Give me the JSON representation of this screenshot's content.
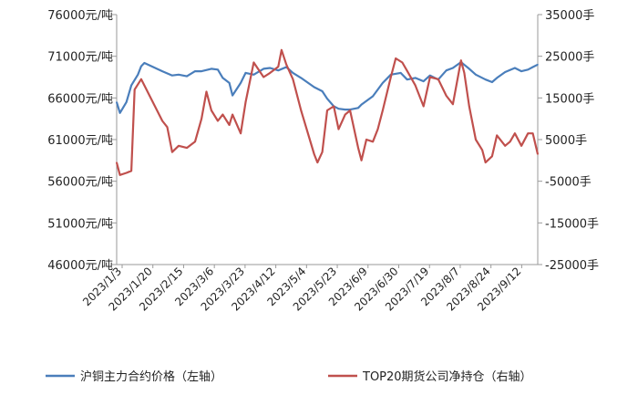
{
  "chart_data": {
    "type": "line",
    "legend_position": "bottom",
    "grid": false,
    "y_left": {
      "range": [
        46000,
        76000
      ],
      "ticks": [
        76000,
        71000,
        66000,
        61000,
        56000,
        51000,
        46000
      ],
      "tick_labels": [
        "76000元/吨",
        "71000元/吨",
        "66000元/吨",
        "61000元/吨",
        "56000元/吨",
        "51000元/吨",
        "46000元/吨"
      ]
    },
    "y_right": {
      "range": [
        -25000,
        35000
      ],
      "ticks": [
        35000,
        25000,
        15000,
        5000,
        -5000,
        -15000,
        -25000
      ],
      "tick_labels": [
        "35000手",
        "25000手",
        "15000手",
        "5000手",
        "-5000手",
        "-15000手",
        "-25000手"
      ]
    },
    "x": {
      "range": [
        "2023/1/3",
        "2023/9/18"
      ],
      "tick_labels": [
        "2023/1/3",
        "2023/1/20",
        "2023/2/15",
        "2023/3/6",
        "2023/3/23",
        "2023/4/12",
        "2023/5/4",
        "2023/5/23",
        "2023/6/9",
        "2023/6/30",
        "2023/7/19",
        "2023/8/7",
        "2023/8/24",
        "2023/9/12"
      ]
    },
    "series": [
      {
        "name": "沪铜主力合约价格（左轴）",
        "color": "#4a7ebb",
        "axis": "left",
        "points": [
          [
            "2023/1/3",
            65500
          ],
          [
            "2023/1/5",
            64200
          ],
          [
            "2023/1/9",
            65500
          ],
          [
            "2023/1/12",
            67500
          ],
          [
            "2023/1/16",
            68800
          ],
          [
            "2023/1/18",
            69800
          ],
          [
            "2023/1/20",
            70200
          ],
          [
            "2023/1/31",
            69200
          ],
          [
            "2023/2/6",
            68700
          ],
          [
            "2023/2/10",
            68800
          ],
          [
            "2023/2/15",
            68600
          ],
          [
            "2023/2/20",
            69200
          ],
          [
            "2023/2/24",
            69200
          ],
          [
            "2023/3/2",
            69500
          ],
          [
            "2023/3/6",
            69400
          ],
          [
            "2023/3/9",
            68400
          ],
          [
            "2023/3/13",
            67800
          ],
          [
            "2023/3/15",
            66300
          ],
          [
            "2023/3/20",
            67800
          ],
          [
            "2023/3/23",
            69000
          ],
          [
            "2023/3/28",
            68800
          ],
          [
            "2023/4/3",
            69500
          ],
          [
            "2023/4/7",
            69600
          ],
          [
            "2023/4/12",
            69300
          ],
          [
            "2023/4/17",
            69700
          ],
          [
            "2023/4/21",
            69000
          ],
          [
            "2023/4/26",
            68400
          ],
          [
            "2023/5/4",
            67300
          ],
          [
            "2023/5/9",
            66800
          ],
          [
            "2023/5/12",
            65900
          ],
          [
            "2023/5/16",
            65000
          ],
          [
            "2023/5/19",
            64700
          ],
          [
            "2023/5/23",
            64600
          ],
          [
            "2023/5/26",
            64600
          ],
          [
            "2023/5/31",
            64800
          ],
          [
            "2023/6/2",
            65200
          ],
          [
            "2023/6/9",
            66200
          ],
          [
            "2023/6/15",
            67800
          ],
          [
            "2023/6/20",
            68800
          ],
          [
            "2023/6/26",
            69000
          ],
          [
            "2023/6/30",
            68200
          ],
          [
            "2023/7/5",
            68400
          ],
          [
            "2023/7/10",
            68000
          ],
          [
            "2023/7/14",
            68700
          ],
          [
            "2023/7/19",
            68200
          ],
          [
            "2023/7/24",
            69300
          ],
          [
            "2023/7/28",
            69600
          ],
          [
            "2023/8/2",
            70300
          ],
          [
            "2023/8/7",
            69500
          ],
          [
            "2023/8/11",
            68800
          ],
          [
            "2023/8/17",
            68200
          ],
          [
            "2023/8/21",
            67900
          ],
          [
            "2023/8/24",
            68400
          ],
          [
            "2023/8/29",
            69100
          ],
          [
            "2023/9/4",
            69600
          ],
          [
            "2023/9/8",
            69200
          ],
          [
            "2023/9/12",
            69400
          ],
          [
            "2023/9/15",
            69700
          ],
          [
            "2023/9/18",
            70000
          ]
        ]
      },
      {
        "name": "TOP20期货公司净持仓（右轴）",
        "color": "#c0504d",
        "axis": "right",
        "points": [
          [
            "2023/1/3",
            -500
          ],
          [
            "2023/1/5",
            -3500
          ],
          [
            "2023/1/9",
            -3000
          ],
          [
            "2023/1/12",
            -2500
          ],
          [
            "2023/1/14",
            17000
          ],
          [
            "2023/1/18",
            19500
          ],
          [
            "2023/1/20",
            18000
          ],
          [
            "2023/1/31",
            9500
          ],
          [
            "2023/2/3",
            8000
          ],
          [
            "2023/2/6",
            2000
          ],
          [
            "2023/2/10",
            3500
          ],
          [
            "2023/2/15",
            3000
          ],
          [
            "2023/2/20",
            4500
          ],
          [
            "2023/2/24",
            10000
          ],
          [
            "2023/2/27",
            16500
          ],
          [
            "2023/3/2",
            12000
          ],
          [
            "2023/3/6",
            9500
          ],
          [
            "2023/3/9",
            11000
          ],
          [
            "2023/3/13",
            8500
          ],
          [
            "2023/3/15",
            11000
          ],
          [
            "2023/3/20",
            6500
          ],
          [
            "2023/3/23",
            14000
          ],
          [
            "2023/3/28",
            23500
          ],
          [
            "2023/4/3",
            20000
          ],
          [
            "2023/4/7",
            21000
          ],
          [
            "2023/4/12",
            22500
          ],
          [
            "2023/4/14",
            26500
          ],
          [
            "2023/4/17",
            23000
          ],
          [
            "2023/4/21",
            19500
          ],
          [
            "2023/4/26",
            12000
          ],
          [
            "2023/5/4",
            1500
          ],
          [
            "2023/5/6",
            -500
          ],
          [
            "2023/5/9",
            2000
          ],
          [
            "2023/5/12",
            12000
          ],
          [
            "2023/5/16",
            13000
          ],
          [
            "2023/5/19",
            7500
          ],
          [
            "2023/5/23",
            11000
          ],
          [
            "2023/5/26",
            12000
          ],
          [
            "2023/5/31",
            3000
          ],
          [
            "2023/6/2",
            0
          ],
          [
            "2023/6/5",
            5000
          ],
          [
            "2023/6/9",
            4500
          ],
          [
            "2023/6/12",
            7500
          ],
          [
            "2023/6/15",
            12000
          ],
          [
            "2023/6/20",
            20000
          ],
          [
            "2023/6/23",
            24500
          ],
          [
            "2023/6/27",
            23500
          ],
          [
            "2023/6/30",
            21500
          ],
          [
            "2023/7/5",
            18000
          ],
          [
            "2023/7/10",
            13000
          ],
          [
            "2023/7/14",
            20000
          ],
          [
            "2023/7/19",
            19500
          ],
          [
            "2023/7/24",
            15500
          ],
          [
            "2023/7/28",
            13500
          ],
          [
            "2023/8/2",
            24000
          ],
          [
            "2023/8/4",
            21000
          ],
          [
            "2023/8/7",
            13000
          ],
          [
            "2023/8/11",
            5000
          ],
          [
            "2023/8/15",
            2500
          ],
          [
            "2023/8/17",
            -500
          ],
          [
            "2023/8/21",
            1000
          ],
          [
            "2023/8/24",
            6000
          ],
          [
            "2023/8/29",
            3500
          ],
          [
            "2023/9/1",
            4500
          ],
          [
            "2023/9/4",
            6500
          ],
          [
            "2023/9/8",
            3500
          ],
          [
            "2023/9/12",
            6500
          ],
          [
            "2023/9/15",
            6500
          ],
          [
            "2023/9/18",
            1500
          ]
        ]
      }
    ]
  }
}
